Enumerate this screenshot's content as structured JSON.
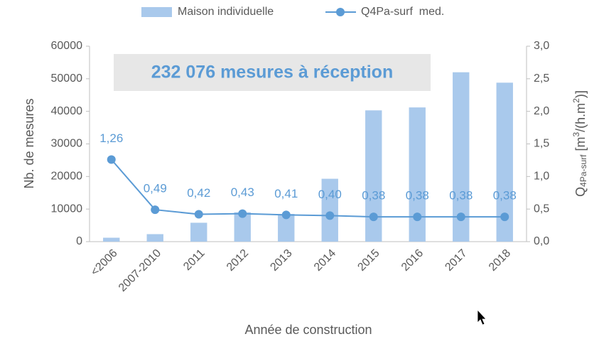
{
  "chart_data": {
    "type": "bar",
    "annotation": "232 076 mesures à réception",
    "xlabel": "Année de construction",
    "ylabel": "Nb. de mesures",
    "y2label": [
      "Q",
      "4Pa-surf",
      " [m",
      "3",
      "/(h.m",
      "2",
      ")]"
    ],
    "categories": [
      "<2006",
      "2007-2010",
      "2011",
      "2012",
      "2013",
      "2014",
      "2015",
      "2016",
      "2017",
      "2018"
    ],
    "series": [
      {
        "name": "Maison individuelle",
        "type": "bar",
        "color": "#a9c9ec",
        "values": [
          1200,
          2300,
          5800,
          9000,
          8500,
          19300,
          40300,
          41200,
          52000,
          48800
        ]
      },
      {
        "name": "Q4Pa-surf  med.",
        "type": "line",
        "axis": "y2",
        "color": "#5b9bd5",
        "values": [
          1.26,
          0.49,
          0.42,
          0.43,
          0.41,
          0.4,
          0.38,
          0.38,
          0.38,
          0.38
        ],
        "value_labels": [
          "1,26",
          "0,49",
          "0,42",
          "0,43",
          "0,41",
          "0,40",
          "0,38",
          "0,38",
          "0,38",
          "0,38"
        ]
      }
    ],
    "ylim": [
      0,
      60000
    ],
    "yticks": [
      0,
      10000,
      20000,
      30000,
      40000,
      50000,
      60000
    ],
    "y2lim": [
      0,
      3
    ],
    "y2ticks": [
      {
        "value": 0,
        "label": "0,0"
      },
      {
        "value": 0.5,
        "label": "0,5"
      },
      {
        "value": 1,
        "label": "1,0"
      },
      {
        "value": 1.5,
        "label": "1,5"
      },
      {
        "value": 2,
        "label": "2,0"
      },
      {
        "value": 2.5,
        "label": "2,5"
      },
      {
        "value": 3,
        "label": "3,0"
      }
    ],
    "grid": false,
    "legend": "top"
  }
}
